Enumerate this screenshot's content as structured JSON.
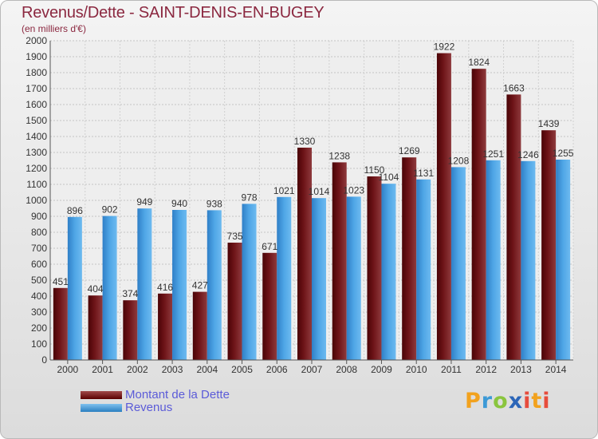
{
  "title": "Revenus/Dette - SAINT-DENIS-EN-BUGEY",
  "subtitle": "(en milliers d'€)",
  "legend": {
    "debt": "Montant de la Dette",
    "revenue": "Revenus"
  },
  "brand": {
    "p": "P",
    "r": "r",
    "o": "o",
    "x": "x",
    "i": "i",
    "t": "t",
    "i2": "i"
  },
  "colors": {
    "debt": "#6e1418",
    "revenue": "#4fa6e6",
    "title": "#8b2840",
    "legend_text": "#5b5bd8"
  },
  "chart_data": {
    "type": "bar",
    "categories": [
      "2000",
      "2001",
      "2002",
      "2003",
      "2004",
      "2005",
      "2006",
      "2007",
      "2008",
      "2009",
      "2010",
      "2011",
      "2012",
      "2013",
      "2014"
    ],
    "series": [
      {
        "name": "Montant de la Dette",
        "values": [
          451,
          404,
          374,
          416,
          427,
          735,
          671,
          1330,
          1238,
          1150,
          1269,
          1922,
          1824,
          1663,
          1439
        ]
      },
      {
        "name": "Revenus",
        "values": [
          896,
          902,
          949,
          940,
          938,
          978,
          1021,
          1014,
          1023,
          1104,
          1131,
          1208,
          1251,
          1246,
          1255
        ]
      }
    ],
    "ylim": [
      0,
      2000
    ],
    "yticks": [
      0,
      100,
      200,
      300,
      400,
      500,
      600,
      700,
      800,
      900,
      1000,
      1100,
      1200,
      1300,
      1400,
      1500,
      1600,
      1700,
      1800,
      1900,
      2000
    ],
    "grid": true
  }
}
